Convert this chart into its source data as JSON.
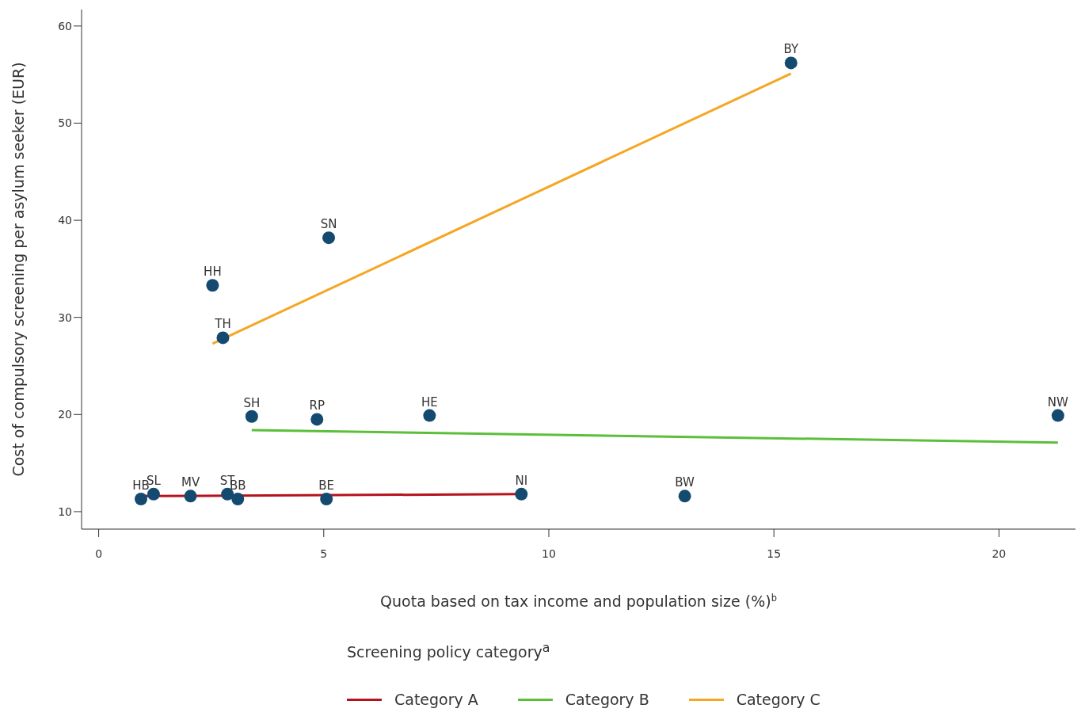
{
  "chart_data": {
    "type": "scatter",
    "xlabel": "Quota based on tax income and population size (%)$^{b}$",
    "ylabel": "Cost of compulsory screening per asylum seeker (EUR)",
    "legend_title": "Screening policy category$^{a}$",
    "legend": "bottom",
    "grid": false,
    "xlim": [
      -0.38,
      21.7
    ],
    "xticks": [
      0,
      5,
      10,
      15,
      20
    ],
    "ylim": [
      8.2,
      61.7
    ],
    "yticks": [
      10,
      20,
      30,
      40,
      50,
      60
    ],
    "series": [
      {
        "color": "#154a70",
        "marker": "circle",
        "x": [
          0.94,
          1.22,
          2.04,
          2.86,
          3.09,
          5.06,
          9.39,
          13.02,
          2.53,
          2.76,
          5.11,
          15.38,
          3.4,
          4.85,
          7.35,
          21.31
        ],
        "values": [
          11.3,
          11.8,
          11.6,
          11.8,
          11.3,
          11.3,
          11.8,
          11.6,
          33.3,
          27.9,
          38.2,
          56.2,
          19.8,
          19.5,
          19.9,
          19.9
        ]
      },
      {
        "type": "line",
        "name": "Category A",
        "color": "#b5121b",
        "x": [
          0.94,
          9.39
        ],
        "values": [
          11.6,
          11.8
        ]
      },
      {
        "type": "line",
        "name": "Category B",
        "color": "#5cbf3a",
        "x": [
          3.4,
          21.31
        ],
        "values": [
          18.4,
          17.1
        ]
      },
      {
        "type": "line",
        "name": "Category C",
        "color": "#f5a623",
        "x": [
          2.53,
          15.38
        ],
        "values": [
          27.3,
          55.1
        ]
      }
    ],
    "annotations": [
      {
        "text": "HB",
        "x": 0.94,
        "y": 11.3
      },
      {
        "text": "SL",
        "x": 1.22,
        "y": 11.8
      },
      {
        "text": "MV",
        "x": 2.04,
        "y": 11.6
      },
      {
        "text": "ST",
        "x": 2.86,
        "y": 11.8
      },
      {
        "text": "BB",
        "x": 3.09,
        "y": 11.3
      },
      {
        "text": "BE",
        "x": 5.06,
        "y": 11.3
      },
      {
        "text": "NI",
        "x": 9.39,
        "y": 11.8
      },
      {
        "text": "BW",
        "x": 13.02,
        "y": 11.6
      },
      {
        "text": "HH",
        "x": 2.53,
        "y": 33.3
      },
      {
        "text": "TH",
        "x": 2.76,
        "y": 27.9
      },
      {
        "text": "SN",
        "x": 5.11,
        "y": 38.2
      },
      {
        "text": "BY",
        "x": 15.38,
        "y": 56.2
      },
      {
        "text": "SH",
        "x": 3.4,
        "y": 19.8
      },
      {
        "text": "RP",
        "x": 4.85,
        "y": 19.5
      },
      {
        "text": "HE",
        "x": 7.35,
        "y": 19.9
      },
      {
        "text": "NW",
        "x": 21.31,
        "y": 19.9
      }
    ]
  }
}
